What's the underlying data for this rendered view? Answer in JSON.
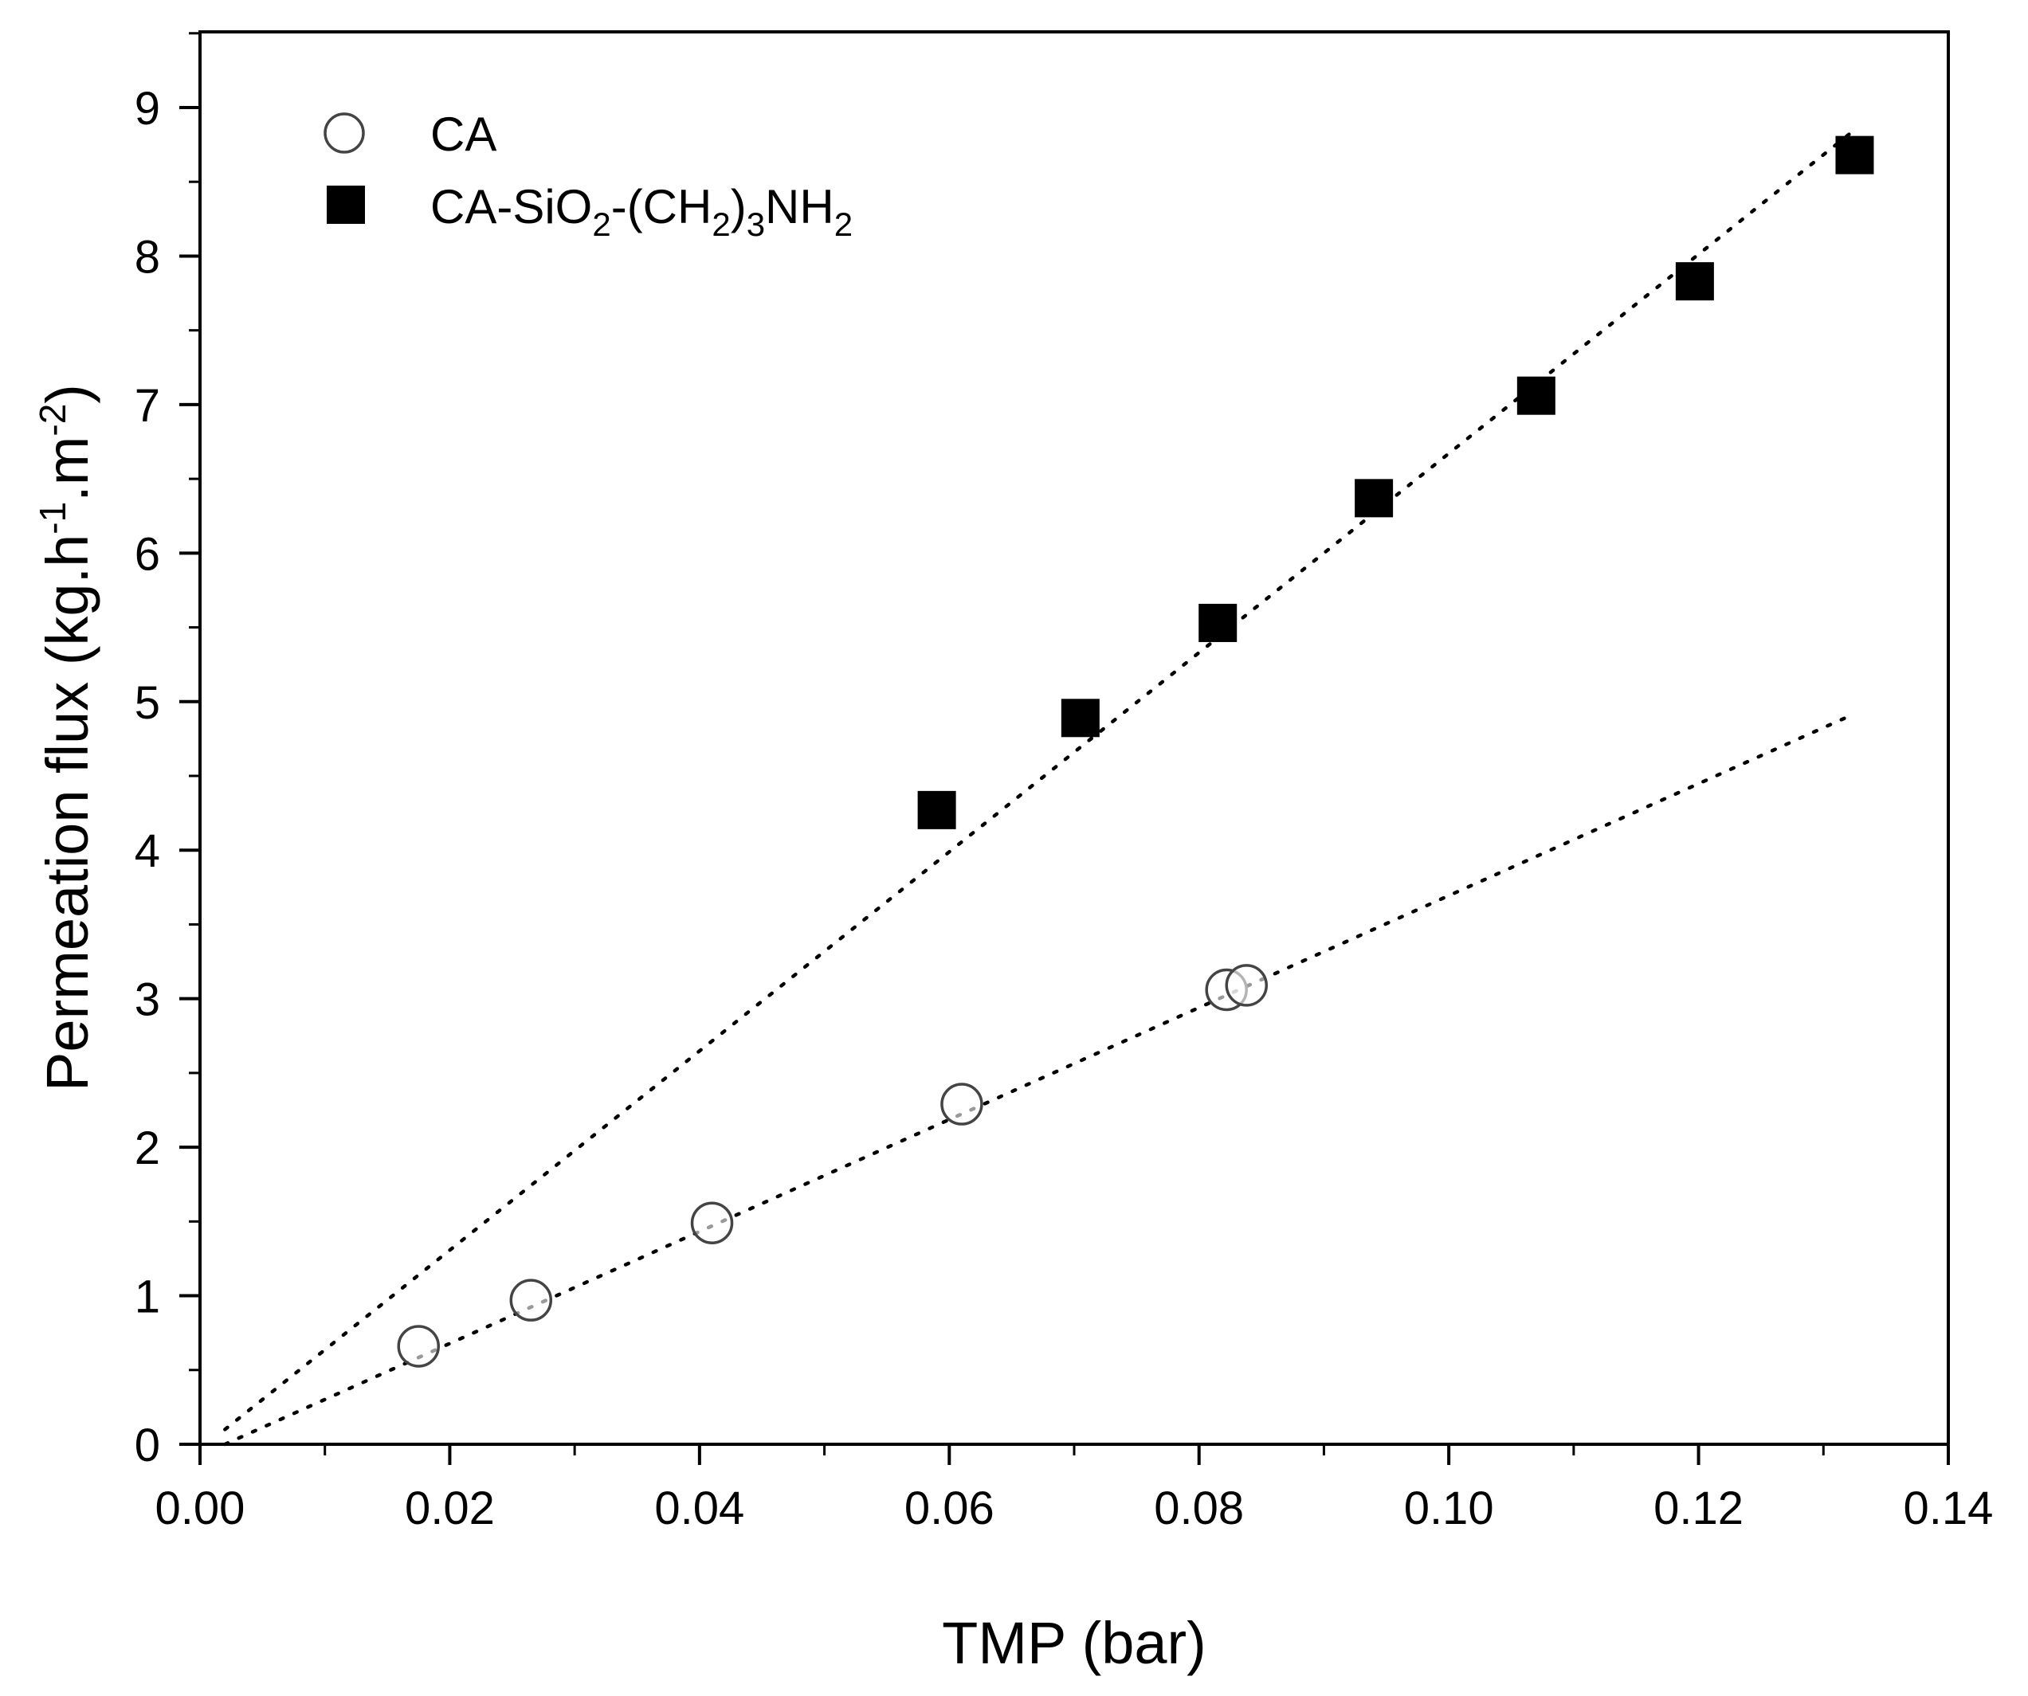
{
  "chart_data": {
    "type": "scatter",
    "title": "",
    "xlabel": "TMP (bar)",
    "ylabel": {
      "prefix": "Permeation flux (kg.h",
      "sup1": "-1",
      "middle": ".m",
      "sup2": "-2",
      "suffix": ")"
    },
    "xlim": [
      0.0,
      0.14
    ],
    "ylim": [
      0,
      9.5
    ],
    "xticks": [
      0.0,
      0.02,
      0.04,
      0.06,
      0.08,
      0.1,
      0.12,
      0.14
    ],
    "xtick_labels": [
      "0.00",
      "0.02",
      "0.04",
      "0.06",
      "0.08",
      "0.10",
      "0.12",
      "0.14"
    ],
    "yticks": [
      0,
      1,
      2,
      3,
      4,
      5,
      6,
      7,
      8,
      9
    ],
    "ytick_labels": [
      "0",
      "1",
      "2",
      "3",
      "4",
      "5",
      "6",
      "7",
      "8",
      "9"
    ],
    "grid": false,
    "legend_position": "top-left",
    "series": [
      {
        "name": "CA",
        "marker": "open-circle",
        "color": "#000000",
        "x": [
          0.0175,
          0.0265,
          0.041,
          0.061,
          0.0822,
          0.0838
        ],
        "y": [
          0.66,
          0.97,
          1.49,
          2.29,
          3.06,
          3.09
        ],
        "fit": {
          "x": [
            0.002,
            0.132
          ],
          "y": [
            0.0,
            4.9
          ]
        }
      },
      {
        "name": "CA-SiO2-(CH2)3NH2",
        "marker": "filled-square",
        "color": "#000000",
        "x": [
          0.059,
          0.0705,
          0.0815,
          0.094,
          0.107,
          0.1197,
          0.1325
        ],
        "y": [
          4.27,
          4.89,
          5.53,
          6.37,
          7.06,
          7.83,
          8.68
        ],
        "fit": {
          "x": [
            0.002,
            0.1325
          ],
          "y": [
            0.1,
            8.85
          ]
        }
      }
    ],
    "legend": {
      "ca": "CA",
      "mod": {
        "p1": "CA-SiO",
        "s1": "2",
        "p2": "-(CH",
        "s2": "2",
        "p3": ")",
        "s3": "3",
        "p4": "NH",
        "s4": "2"
      }
    }
  }
}
